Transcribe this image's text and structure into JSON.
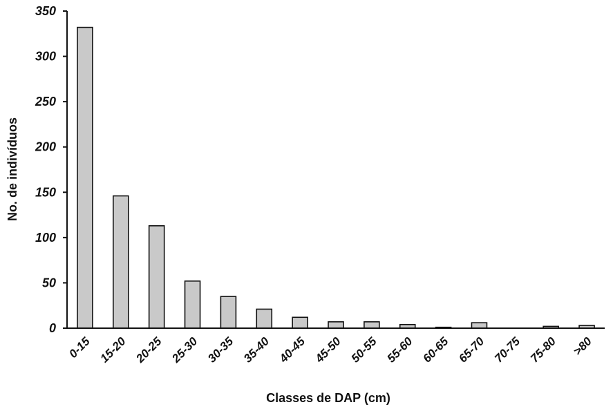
{
  "chart_data": {
    "type": "bar",
    "title": "",
    "xlabel": "Classes de DAP (cm)",
    "ylabel": "No. de indivíduos",
    "ylim": [
      0,
      350
    ],
    "yticks": [
      0,
      50,
      100,
      150,
      200,
      250,
      300,
      350
    ],
    "grid": false,
    "bar_color": "#c9c9c9",
    "categories": [
      "0-15",
      "15-20",
      "20-25",
      "25-30",
      "30-35",
      "35-40",
      "40-45",
      "45-50",
      "50-55",
      "55-60",
      "60-65",
      "65-70",
      "70-75",
      "75-80",
      ">80"
    ],
    "values": [
      332,
      146,
      113,
      52,
      35,
      21,
      12,
      7,
      7,
      4,
      1,
      6,
      0,
      2,
      3
    ]
  }
}
